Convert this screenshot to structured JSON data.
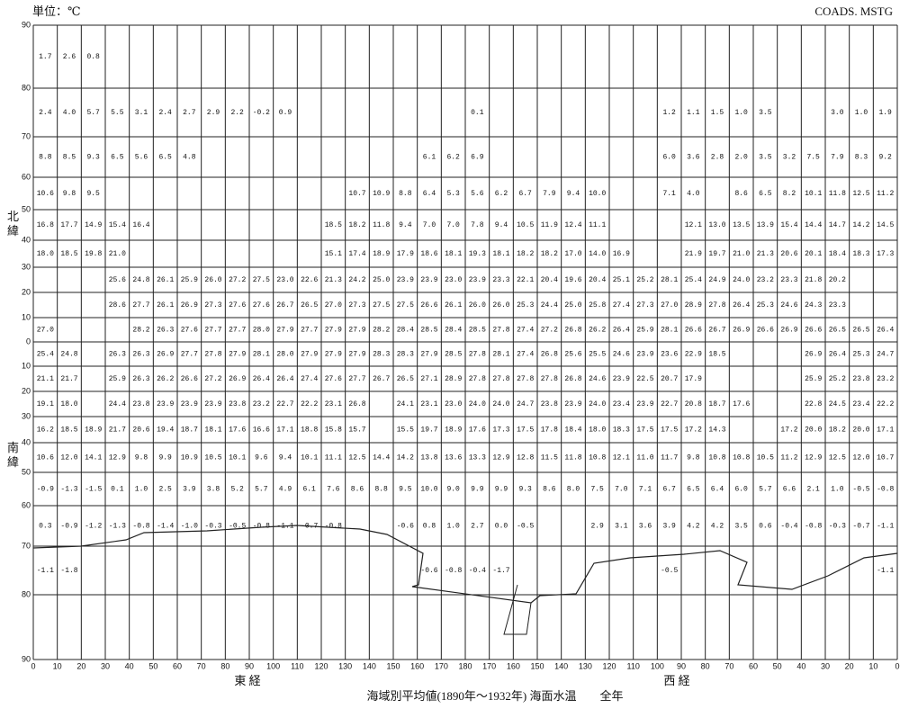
{
  "header": {
    "unit": "単位：℃",
    "code": "COADS. MSTG"
  },
  "caption": "海域別平均値(1890年～1932年) 海面水温　　全年",
  "axis": {
    "east": "東 経",
    "west": "西 経",
    "north": "北 緯",
    "south": "南 緯",
    "lon_labels": [
      "0",
      "10",
      "20",
      "30",
      "40",
      "50",
      "60",
      "70",
      "80",
      "90",
      "100",
      "110",
      "120",
      "130",
      "140",
      "150",
      "160",
      "170",
      "180",
      "170",
      "160",
      "150",
      "140",
      "130",
      "120",
      "110",
      "100",
      "90",
      "80",
      "70",
      "60",
      "50",
      "40",
      "30",
      "20",
      "10",
      "0"
    ],
    "lat_labels": [
      "90",
      "80",
      "70",
      "60",
      "50",
      "40",
      "30",
      "20",
      "10",
      "0",
      "10",
      "20",
      "30",
      "40",
      "50",
      "60",
      "70",
      "80",
      "90"
    ]
  },
  "grid": {
    "rows": [
      [
        "1.7",
        "2.6",
        "0.8",
        null,
        null,
        null,
        null,
        null,
        null,
        null,
        null,
        null,
        null,
        null,
        null,
        null,
        null,
        null,
        null,
        null,
        null,
        null,
        null,
        null,
        null,
        null,
        null,
        null,
        null,
        null,
        null,
        null,
        null,
        null,
        null,
        null
      ],
      [
        "2.4",
        "4.0",
        "5.7",
        "5.5",
        "3.1",
        "2.4",
        "2.7",
        "2.9",
        "2.2",
        "-0.2",
        "0.9",
        null,
        null,
        null,
        null,
        null,
        null,
        null,
        "0.1",
        null,
        null,
        null,
        null,
        null,
        null,
        null,
        "1.2",
        "1.1",
        "1.5",
        "1.0",
        "3.5",
        null,
        null,
        "3.0",
        "1.0",
        "1.9"
      ],
      [
        "8.8",
        "8.5",
        "9.3",
        "6.5",
        "5.6",
        "6.5",
        "4.8",
        null,
        null,
        null,
        null,
        null,
        null,
        null,
        null,
        null,
        "6.1",
        "6.2",
        "6.9",
        null,
        null,
        null,
        null,
        null,
        null,
        null,
        "6.0",
        "3.6",
        "2.8",
        "2.0",
        "3.5",
        "3.2",
        "7.5",
        "7.9",
        "8.3",
        "9.2"
      ],
      [
        "10.6",
        "9.8",
        "9.5",
        null,
        null,
        null,
        null,
        null,
        null,
        null,
        null,
        null,
        null,
        "10.7",
        "10.9",
        "8.8",
        "6.4",
        "5.3",
        "5.6",
        "6.2",
        "6.7",
        "7.9",
        "9.4",
        "10.0",
        null,
        null,
        "7.1",
        "4.0",
        null,
        "8.6",
        "6.5",
        "8.2",
        "10.1",
        "11.8",
        "12.5",
        "11.2"
      ],
      [
        "16.8",
        "17.7",
        "14.9",
        "15.4",
        "16.4",
        null,
        null,
        null,
        null,
        null,
        null,
        null,
        "18.5",
        "18.2",
        "11.8",
        "9.4",
        "7.0",
        "7.0",
        "7.8",
        "9.4",
        "10.5",
        "11.9",
        "12.4",
        "11.1",
        null,
        null,
        null,
        "12.1",
        "13.0",
        "13.5",
        "13.9",
        "15.4",
        "14.4",
        "14.7",
        "14.2",
        "14.5"
      ],
      [
        "18.0",
        "18.5",
        "19.8",
        "21.0",
        null,
        null,
        null,
        null,
        null,
        null,
        null,
        null,
        "15.1",
        "17.4",
        "18.9",
        "17.9",
        "18.6",
        "18.1",
        "19.3",
        "18.1",
        "18.2",
        "18.2",
        "17.0",
        "14.0",
        "16.9",
        null,
        null,
        "21.9",
        "19.7",
        "21.0",
        "21.3",
        "20.6",
        "20.1",
        "18.4",
        "18.3",
        "17.3"
      ],
      [
        null,
        null,
        null,
        "25.6",
        "24.8",
        "26.1",
        "25.9",
        "26.0",
        "27.2",
        "27.5",
        "23.0",
        "22.6",
        "21.3",
        "24.2",
        "25.0",
        "23.9",
        "23.9",
        "23.0",
        "23.9",
        "23.3",
        "22.1",
        "20.4",
        "19.6",
        "20.4",
        "25.1",
        "25.2",
        "28.1",
        "25.4",
        "24.9",
        "24.0",
        "23.2",
        "23.3",
        "21.8",
        "20.2",
        null,
        null
      ],
      [
        null,
        null,
        null,
        "28.6",
        "27.7",
        "26.1",
        "26.9",
        "27.3",
        "27.6",
        "27.6",
        "26.7",
        "26.5",
        "27.0",
        "27.3",
        "27.5",
        "27.5",
        "26.6",
        "26.1",
        "26.0",
        "26.0",
        "25.3",
        "24.4",
        "25.0",
        "25.8",
        "27.4",
        "27.3",
        "27.0",
        "28.9",
        "27.8",
        "26.4",
        "25.3",
        "24.6",
        "24.3",
        "23.3",
        null,
        null
      ],
      [
        "27.0",
        null,
        null,
        null,
        "28.2",
        "26.3",
        "27.6",
        "27.7",
        "27.7",
        "28.0",
        "27.9",
        "27.7",
        "27.9",
        "27.9",
        "28.2",
        "28.4",
        "28.5",
        "28.4",
        "28.5",
        "27.8",
        "27.4",
        "27.2",
        "26.8",
        "26.2",
        "26.4",
        "25.9",
        "28.1",
        "26.6",
        "26.7",
        "26.9",
        "26.6",
        "26.9",
        "26.6",
        "26.5",
        "26.5",
        "26.4"
      ],
      [
        "25.4",
        "24.8",
        null,
        "26.3",
        "26.3",
        "26.9",
        "27.7",
        "27.8",
        "27.9",
        "28.1",
        "28.0",
        "27.9",
        "27.9",
        "27.9",
        "28.3",
        "28.3",
        "27.9",
        "28.5",
        "27.8",
        "28.1",
        "27.4",
        "26.8",
        "25.6",
        "25.5",
        "24.6",
        "23.9",
        "23.6",
        "22.9",
        "18.5",
        null,
        null,
        null,
        "26.9",
        "26.4",
        "25.3",
        "24.7"
      ],
      [
        "21.1",
        "21.7",
        null,
        "25.9",
        "26.3",
        "26.2",
        "26.6",
        "27.2",
        "26.9",
        "26.4",
        "26.4",
        "27.4",
        "27.6",
        "27.7",
        "26.7",
        "26.5",
        "27.1",
        "28.9",
        "27.8",
        "27.8",
        "27.8",
        "27.8",
        "26.8",
        "24.6",
        "23.9",
        "22.5",
        "20.7",
        "17.9",
        null,
        null,
        null,
        null,
        "25.9",
        "25.2",
        "23.8",
        "23.2"
      ],
      [
        "19.1",
        "18.0",
        null,
        "24.4",
        "23.8",
        "23.9",
        "23.9",
        "23.9",
        "23.8",
        "23.2",
        "22.7",
        "22.2",
        "23.1",
        "26.8",
        null,
        "24.1",
        "23.1",
        "23.0",
        "24.0",
        "24.0",
        "24.7",
        "23.8",
        "23.9",
        "24.0",
        "23.4",
        "23.9",
        "22.7",
        "20.8",
        "18.7",
        "17.6",
        null,
        null,
        "22.8",
        "24.5",
        "23.4",
        "22.2"
      ],
      [
        "16.2",
        "18.5",
        "18.9",
        "21.7",
        "20.6",
        "19.4",
        "18.7",
        "18.1",
        "17.6",
        "16.6",
        "17.1",
        "18.8",
        "15.8",
        "15.7",
        null,
        "15.5",
        "19.7",
        "18.9",
        "17.6",
        "17.3",
        "17.5",
        "17.8",
        "18.4",
        "18.0",
        "18.3",
        "17.5",
        "17.5",
        "17.2",
        "14.3",
        null,
        null,
        "17.2",
        "20.0",
        "18.2",
        "20.0",
        "17.1"
      ],
      [
        "10.6",
        "12.0",
        "14.1",
        "12.9",
        "9.8",
        "9.9",
        "10.9",
        "10.5",
        "10.1",
        "9.6",
        "9.4",
        "10.1",
        "11.1",
        "12.5",
        "14.4",
        "14.2",
        "13.8",
        "13.6",
        "13.3",
        "12.9",
        "12.8",
        "11.5",
        "11.8",
        "10.8",
        "12.1",
        "11.0",
        "11.7",
        "9.8",
        "10.8",
        "10.8",
        "10.5",
        "11.2",
        "12.9",
        "12.5",
        "12.0",
        "10.7"
      ],
      [
        "-0.9",
        "-1.3",
        "-1.5",
        "0.1",
        "1.0",
        "2.5",
        "3.9",
        "3.8",
        "5.2",
        "5.7",
        "4.9",
        "6.1",
        "7.6",
        "8.6",
        "8.8",
        "9.5",
        "10.0",
        "9.0",
        "9.9",
        "9.9",
        "9.3",
        "8.6",
        "8.0",
        "7.5",
        "7.0",
        "7.1",
        "6.7",
        "6.5",
        "6.4",
        "6.0",
        "5.7",
        "6.6",
        "2.1",
        "1.0",
        "-0.5",
        "-0.8"
      ],
      [
        "0.3",
        "-0.9",
        "-1.2",
        "-1.3",
        "-0.8",
        "-1.4",
        "-1.0",
        "-0.3",
        "-0.5",
        "-0.8",
        "-1.1",
        "-0.7",
        "-0.8",
        null,
        null,
        "-0.6",
        "0.8",
        "1.0",
        "2.7",
        "0.0",
        "-0.5",
        null,
        null,
        "2.9",
        "3.1",
        "3.6",
        "3.9",
        "4.2",
        "4.2",
        "3.5",
        "0.6",
        "-0.4",
        "-0.8",
        "-0.3",
        "-0.7",
        "-1.1"
      ],
      [
        "-1.1",
        "-1.8",
        null,
        null,
        null,
        null,
        null,
        null,
        null,
        null,
        null,
        null,
        null,
        null,
        null,
        null,
        "-0.6",
        "-0.8",
        "-0.4",
        "-1.7",
        null,
        null,
        null,
        null,
        null,
        null,
        "-0.5",
        null,
        null,
        null,
        null,
        null,
        null,
        null,
        null,
        "-1.1"
      ]
    ]
  }
}
